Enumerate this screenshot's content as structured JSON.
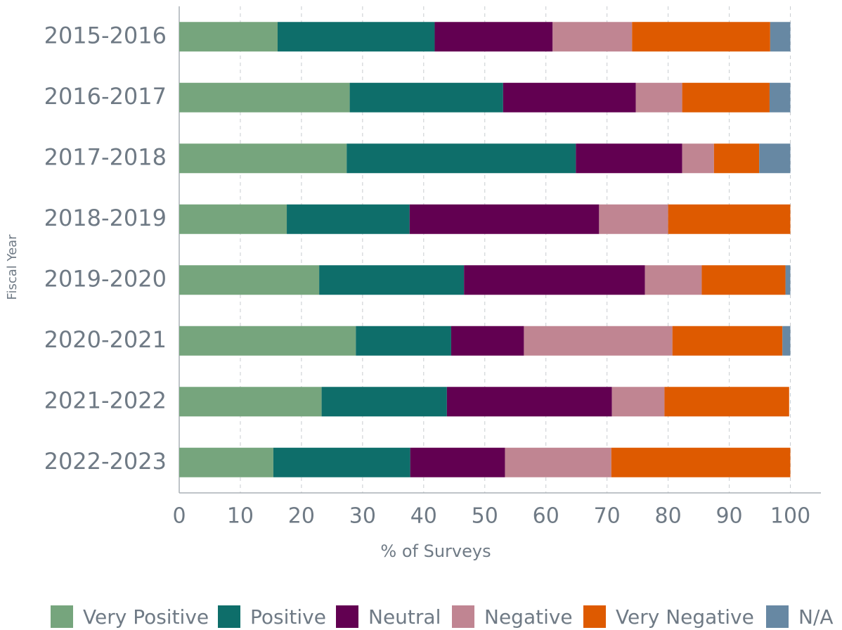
{
  "chart_data": {
    "type": "stacked_bar_horizontal",
    "x_label": "% of Surveys",
    "y_label": "Fiscal Year",
    "categories": [
      "2015-2016",
      "2016-2017",
      "2017-2018",
      "2018-2019",
      "2019-2020",
      "2020-2021",
      "2021-2022",
      "2022-2023"
    ],
    "series": [
      {
        "name": "Very Positive",
        "color": "#76a57d",
        "values": [
          16.1,
          27.9,
          27.4,
          17.6,
          22.9,
          28.9,
          23.3,
          15.4
        ]
      },
      {
        "name": "Positive",
        "color": "#0e6e6a",
        "values": [
          25.7,
          25.1,
          37.5,
          20.1,
          23.7,
          15.6,
          20.5,
          22.4
        ]
      },
      {
        "name": "Neutral",
        "color": "#620051",
        "values": [
          19.3,
          21.7,
          17.4,
          31.0,
          29.6,
          11.9,
          27.0,
          15.5
        ]
      },
      {
        "name": "Negative",
        "color": "#c08592",
        "values": [
          13.0,
          7.6,
          5.2,
          11.3,
          9.3,
          24.3,
          8.6,
          17.4
        ]
      },
      {
        "name": "Very Negative",
        "color": "#de5a00",
        "values": [
          22.6,
          14.3,
          7.4,
          20.0,
          13.7,
          18.0,
          20.4,
          29.3
        ]
      },
      {
        "name": "N/A",
        "color": "#6788a3",
        "values": [
          3.3,
          3.4,
          5.1,
          0,
          0.8,
          1.3,
          0,
          0
        ]
      }
    ],
    "xlim": [
      0,
      105
    ],
    "xticks": [
      0,
      10,
      20,
      30,
      40,
      50,
      60,
      70,
      80,
      90,
      100
    ],
    "grid": true,
    "legend": "bottom"
  }
}
